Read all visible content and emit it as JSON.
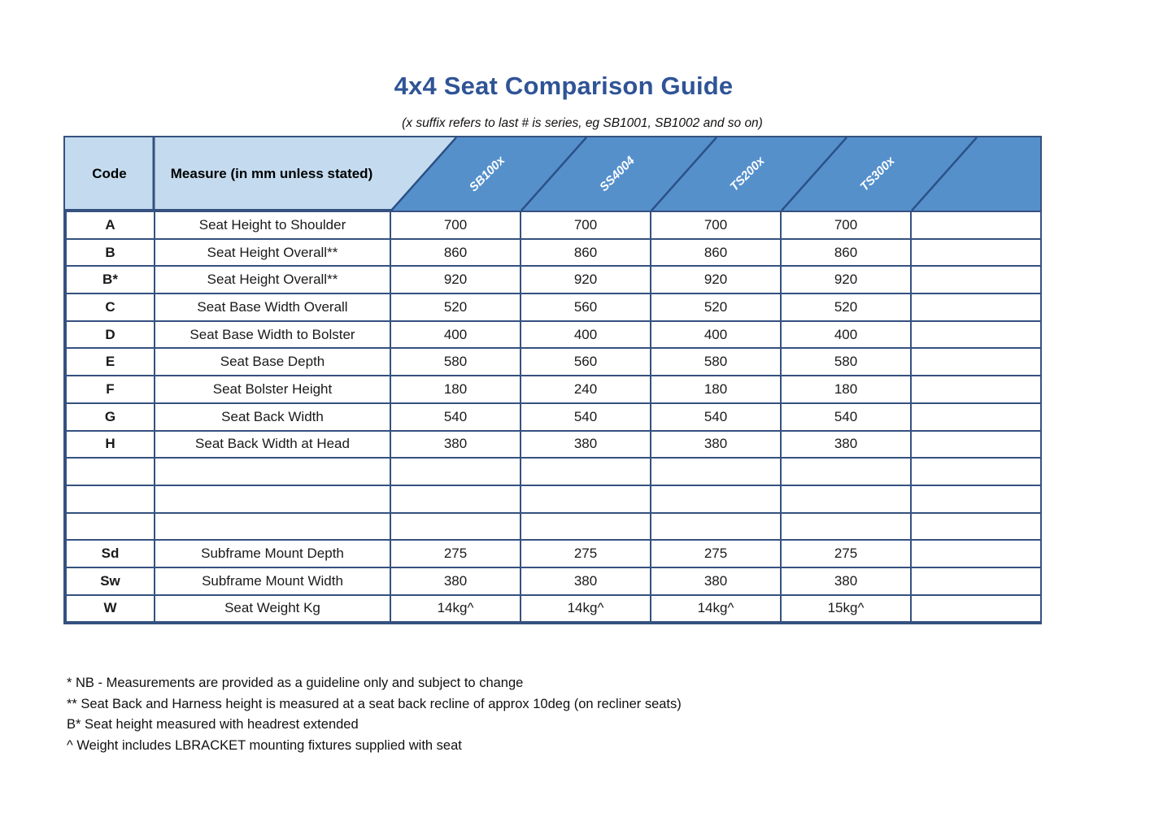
{
  "page": {
    "title": "4x4 Seat Comparison Guide",
    "subtitle": "(x suffix refers to last # is series, eg SB1001, SB1002 and so on)"
  },
  "table": {
    "headers": {
      "code": "Code",
      "measure": "Measure (in mm unless stated)",
      "products": [
        "SB100x",
        "SS4004",
        "TS200x",
        "TS300x"
      ]
    },
    "rows": [
      {
        "code": "A",
        "measure": "Seat Height to Shoulder",
        "values": [
          "700",
          "700",
          "700",
          "700",
          ""
        ]
      },
      {
        "code": "B",
        "measure": "Seat Height Overall**",
        "values": [
          "860",
          "860",
          "860",
          "860",
          ""
        ]
      },
      {
        "code": "B*",
        "measure": "Seat Height Overall**",
        "values": [
          "920",
          "920",
          "920",
          "920",
          ""
        ]
      },
      {
        "code": "C",
        "measure": "Seat Base Width Overall",
        "values": [
          "520",
          "560",
          "520",
          "520",
          ""
        ]
      },
      {
        "code": "D",
        "measure": "Seat Base Width to Bolster",
        "values": [
          "400",
          "400",
          "400",
          "400",
          ""
        ]
      },
      {
        "code": "E",
        "measure": "Seat Base Depth",
        "values": [
          "580",
          "560",
          "580",
          "580",
          ""
        ]
      },
      {
        "code": "F",
        "measure": "Seat Bolster Height",
        "values": [
          "180",
          "240",
          "180",
          "180",
          ""
        ]
      },
      {
        "code": "G",
        "measure": "Seat Back Width",
        "values": [
          "540",
          "540",
          "540",
          "540",
          ""
        ]
      },
      {
        "code": "H",
        "measure": "Seat Back Width at Head",
        "values": [
          "380",
          "380",
          "380",
          "380",
          ""
        ]
      },
      {
        "code": "",
        "measure": "",
        "values": [
          "",
          "",
          "",
          "",
          ""
        ]
      },
      {
        "code": "",
        "measure": "",
        "values": [
          "",
          "",
          "",
          "",
          ""
        ]
      },
      {
        "code": "",
        "measure": "",
        "values": [
          "",
          "",
          "",
          "",
          ""
        ]
      },
      {
        "code": "Sd",
        "measure": "Subframe Mount Depth",
        "values": [
          "275",
          "275",
          "275",
          "275",
          ""
        ]
      },
      {
        "code": "Sw",
        "measure": "Subframe Mount Width",
        "values": [
          "380",
          "380",
          "380",
          "380",
          ""
        ]
      },
      {
        "code": "W",
        "measure": "Seat Weight Kg",
        "values": [
          "14kg^",
          "14kg^",
          "14kg^",
          "15kg^",
          ""
        ]
      }
    ]
  },
  "footnotes": [
    "* NB - Measurements are provided as a guideline only and subject to change",
    "** Seat Back and Harness height is measured at a seat back recline of approx 10deg (on recliner seats)",
    "B* Seat height measured with headrest extended",
    "^ Weight includes LBRACKET mounting fixtures supplied with seat"
  ],
  "colors": {
    "title_blue": "#2F5496",
    "header_light_blue": "#C4DBEF",
    "header_dark_blue": "#5590CB",
    "grid_border": "#35517F",
    "diagonal_line": "#2B5186",
    "header_label_text": "#ffffff"
  }
}
